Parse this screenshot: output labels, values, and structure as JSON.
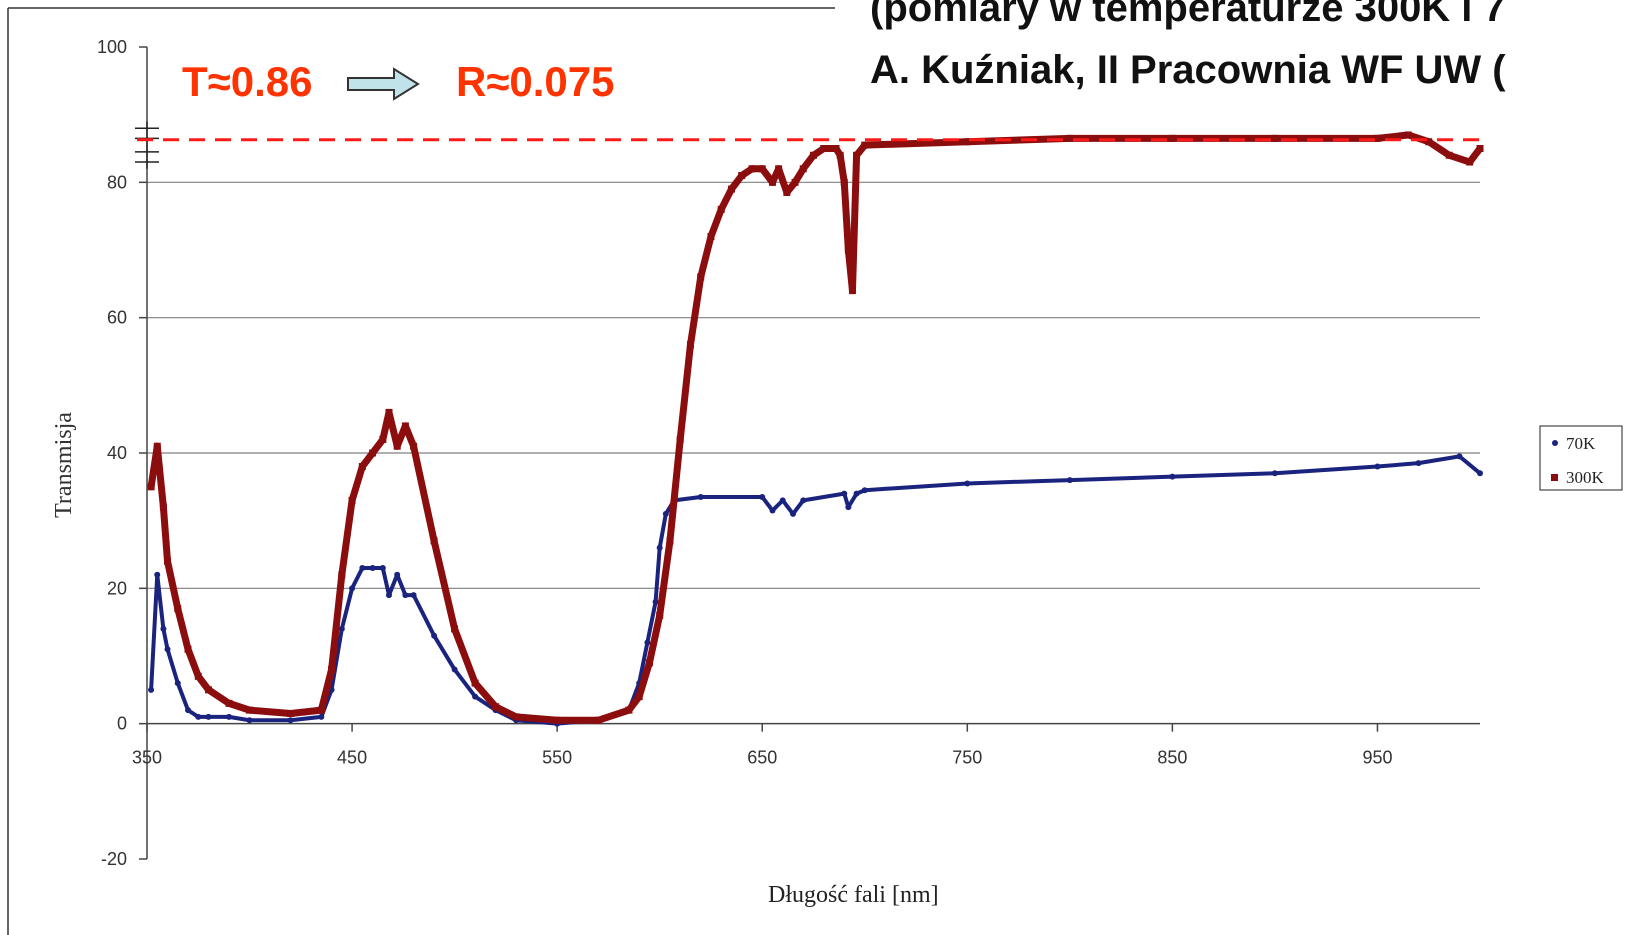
{
  "header": {
    "line1": "(pomiary w temperaturze 300K i 7",
    "line2": "A. Kuźniak, II Pracownia WF UW ("
  },
  "colors": {
    "series_70K": "#1a237e",
    "series_300K": "#8b0d0d",
    "annotation": "#ff3300",
    "arrow_fill": "#bfe3e8",
    "grid": "#808080"
  },
  "chart_data": {
    "type": "scatter",
    "xlabel": "Długość fali [nm]",
    "ylabel": "Transmisja",
    "xlim": [
      350,
      1000
    ],
    "ylim": [
      -20,
      100
    ],
    "x_ticks": [
      350,
      450,
      550,
      650,
      750,
      850,
      950
    ],
    "y_ticks": [
      -20,
      0,
      20,
      40,
      60,
      80,
      100
    ],
    "grid": "horizontal",
    "legend_position": "right",
    "series": [
      {
        "name": "70K",
        "marker": "circle",
        "points": [
          [
            352,
            5
          ],
          [
            355,
            22
          ],
          [
            358,
            14
          ],
          [
            360,
            11
          ],
          [
            365,
            6
          ],
          [
            370,
            2
          ],
          [
            375,
            1
          ],
          [
            380,
            1
          ],
          [
            390,
            1
          ],
          [
            400,
            0.5
          ],
          [
            420,
            0.5
          ],
          [
            435,
            1
          ],
          [
            440,
            5
          ],
          [
            445,
            14
          ],
          [
            450,
            20
          ],
          [
            455,
            23
          ],
          [
            460,
            23
          ],
          [
            465,
            23
          ],
          [
            468,
            19
          ],
          [
            472,
            22
          ],
          [
            476,
            19
          ],
          [
            480,
            19
          ],
          [
            490,
            13
          ],
          [
            500,
            8
          ],
          [
            510,
            4
          ],
          [
            520,
            2
          ],
          [
            530,
            0.5
          ],
          [
            550,
            0
          ],
          [
            570,
            0.5
          ],
          [
            585,
            2
          ],
          [
            590,
            6
          ],
          [
            594,
            12
          ],
          [
            598,
            18
          ],
          [
            600,
            26
          ],
          [
            603,
            31
          ],
          [
            607,
            33
          ],
          [
            620,
            33.5
          ],
          [
            650,
            33.5
          ],
          [
            655,
            31.5
          ],
          [
            660,
            33
          ],
          [
            665,
            31
          ],
          [
            670,
            33
          ],
          [
            690,
            34
          ],
          [
            692,
            32
          ],
          [
            696,
            34
          ],
          [
            700,
            34.5
          ],
          [
            750,
            35.5
          ],
          [
            800,
            36
          ],
          [
            850,
            36.5
          ],
          [
            900,
            37
          ],
          [
            950,
            38
          ],
          [
            970,
            38.5
          ],
          [
            990,
            39.5
          ],
          [
            1000,
            37
          ]
        ]
      },
      {
        "name": "300K",
        "marker": "square",
        "points": [
          [
            352,
            35
          ],
          [
            355,
            41
          ],
          [
            358,
            32
          ],
          [
            360,
            24
          ],
          [
            365,
            17
          ],
          [
            370,
            11
          ],
          [
            375,
            7
          ],
          [
            380,
            5
          ],
          [
            390,
            3
          ],
          [
            400,
            2
          ],
          [
            420,
            1.5
          ],
          [
            435,
            2
          ],
          [
            440,
            8
          ],
          [
            445,
            22
          ],
          [
            450,
            33
          ],
          [
            455,
            38
          ],
          [
            460,
            40
          ],
          [
            465,
            42
          ],
          [
            468,
            46
          ],
          [
            472,
            41
          ],
          [
            476,
            44
          ],
          [
            480,
            41
          ],
          [
            490,
            27
          ],
          [
            500,
            14
          ],
          [
            510,
            6
          ],
          [
            520,
            2.5
          ],
          [
            530,
            1
          ],
          [
            550,
            0.5
          ],
          [
            570,
            0.5
          ],
          [
            585,
            2
          ],
          [
            590,
            4
          ],
          [
            595,
            9
          ],
          [
            600,
            16
          ],
          [
            605,
            27
          ],
          [
            610,
            42
          ],
          [
            615,
            56
          ],
          [
            620,
            66
          ],
          [
            625,
            72
          ],
          [
            630,
            76
          ],
          [
            635,
            79
          ],
          [
            640,
            81
          ],
          [
            645,
            82
          ],
          [
            650,
            82
          ],
          [
            655,
            80
          ],
          [
            658,
            82
          ],
          [
            662,
            78.5
          ],
          [
            666,
            80
          ],
          [
            670,
            82
          ],
          [
            675,
            84
          ],
          [
            680,
            85
          ],
          [
            686,
            85
          ],
          [
            688,
            84
          ],
          [
            690,
            80
          ],
          [
            692,
            70
          ],
          [
            694,
            64
          ],
          [
            696,
            84
          ],
          [
            700,
            85.5
          ],
          [
            750,
            86
          ],
          [
            800,
            86.5
          ],
          [
            850,
            86.5
          ],
          [
            900,
            86.5
          ],
          [
            950,
            86.5
          ],
          [
            965,
            87
          ],
          [
            975,
            86
          ],
          [
            985,
            84
          ],
          [
            995,
            83
          ],
          [
            1000,
            85
          ]
        ]
      }
    ],
    "annotations": [
      {
        "text": "T≈0.86",
        "style": "bold-orange"
      },
      {
        "text": "R≈0.075",
        "style": "bold-orange"
      },
      {
        "type": "reference-line",
        "y": 86.3,
        "style": "dashed-red"
      }
    ]
  }
}
